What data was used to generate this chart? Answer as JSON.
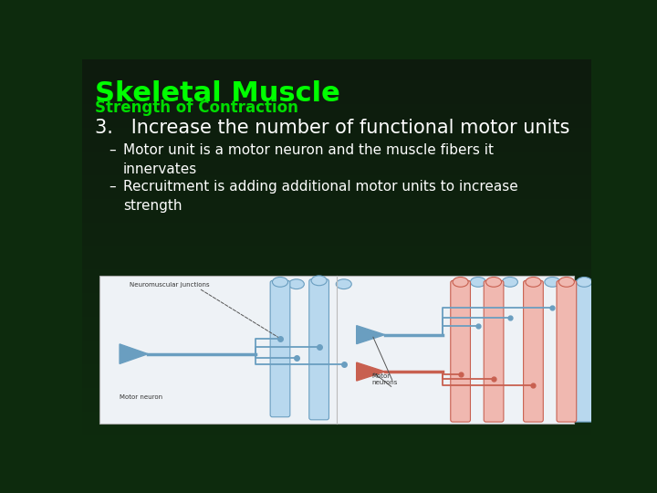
{
  "bg_color": "#0d2b0d",
  "title": "Skeletal Muscle",
  "subtitle": "Strength of Contraction",
  "title_color": "#00ff00",
  "subtitle_color": "#00dd00",
  "title_fontsize": 22,
  "subtitle_fontsize": 12,
  "heading": "3.   Increase the number of functional motor units",
  "heading_color": "#ffffff",
  "heading_fontsize": 15,
  "bullets": [
    "Motor unit is a motor neuron and the muscle fibers it\ninnervates",
    "Recruitment is adding additional motor units to increase\nstrength"
  ],
  "bullet_color": "#ffffff",
  "bullet_fontsize": 11,
  "blue_light": "#b8d8ee",
  "blue_med": "#6a9ec0",
  "red_light": "#f0b8b0",
  "red_med": "#c86050",
  "img_bg": "#eef2f6",
  "label_color": "#333333",
  "label_fontsize": 5.0
}
